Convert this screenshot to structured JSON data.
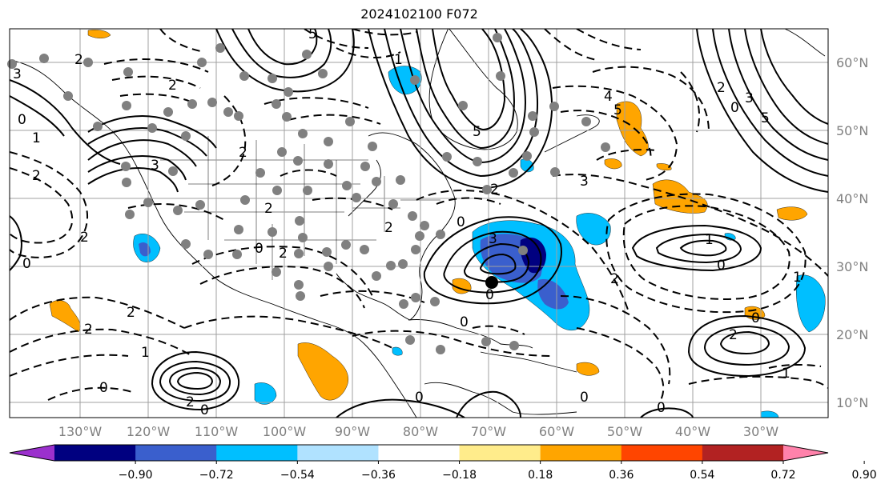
{
  "title": "2024102100 F072",
  "lon_labels": [
    "130°W",
    "120°W",
    "110°W",
    "100°W",
    "90°W",
    "80°W",
    "70°W",
    "60°W",
    "50°W",
    "40°W",
    "30°W"
  ],
  "lat_labels": [
    "60°N",
    "50°N",
    "40°N",
    "30°N",
    "20°N",
    "10°N"
  ],
  "colorbar": {
    "colors": [
      "#9b30cd",
      "#000080",
      "#3a5fcd",
      "#00bfff",
      "#b0e2ff",
      "#ffffff",
      "#ffec8b",
      "#ffa500",
      "#ff4500",
      "#b22222",
      "#ff82ab"
    ],
    "tick_labels": [
      "−0.90",
      "−0.72",
      "−0.54",
      "−0.36",
      "−0.18",
      "0.18",
      "0.36",
      "0.54",
      "0.72",
      "0.90"
    ]
  },
  "contour_labels": [
    "3",
    "2",
    "2",
    "0",
    "0",
    "1",
    "3",
    "2",
    "2",
    "0",
    "2",
    "2",
    "2",
    "0",
    "2",
    "1",
    "2",
    "0",
    "2",
    "2",
    "3",
    "1",
    "0",
    "2",
    "0",
    "3",
    "5",
    "5",
    "5",
    "2",
    "0",
    "3",
    "4",
    "5",
    "1",
    "0",
    "2",
    "1",
    "0",
    "0",
    "2",
    "1",
    "0",
    "0",
    "0"
  ]
}
